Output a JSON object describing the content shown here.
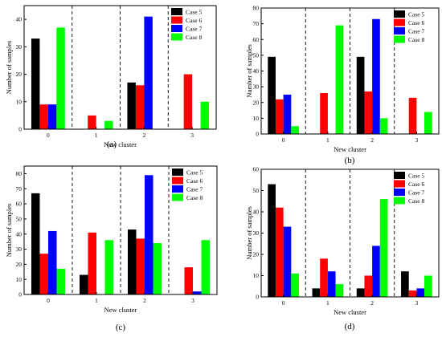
{
  "colors": {
    "case5": "#000000",
    "case6": "#ff0000",
    "case7": "#0000ff",
    "case8": "#00ff00"
  },
  "chart_data": [
    {
      "type": "bar",
      "panel_label": "(a)",
      "xlabel": "New cluster",
      "ylabel": "Number of samples",
      "categories": [
        "0",
        "1",
        "2",
        "3"
      ],
      "ylim": [
        0,
        45
      ],
      "yticks": [
        0,
        10,
        20,
        30,
        40
      ],
      "legend_position": "top-right",
      "series": [
        {
          "name": "Case 5",
          "values": [
            33,
            0,
            17,
            0
          ]
        },
        {
          "name": "Case 6",
          "values": [
            9,
            5,
            16,
            20
          ]
        },
        {
          "name": "Case 7",
          "values": [
            9,
            0,
            41,
            0
          ]
        },
        {
          "name": "Case 8",
          "values": [
            37,
            3,
            0,
            10
          ]
        }
      ]
    },
    {
      "type": "bar",
      "panel_label": "(b)",
      "xlabel": "New cluster",
      "ylabel": "Number of samples",
      "categories": [
        "0",
        "1",
        "2",
        "3"
      ],
      "ylim": [
        0,
        80
      ],
      "yticks": [
        0,
        10,
        20,
        30,
        40,
        50,
        60,
        70,
        80
      ],
      "legend_position": "top-right",
      "series": [
        {
          "name": "Case 5",
          "values": [
            49,
            0,
            49,
            0
          ]
        },
        {
          "name": "Case 6",
          "values": [
            22,
            26,
            27,
            23
          ]
        },
        {
          "name": "Case 7",
          "values": [
            25,
            0,
            73,
            0
          ]
        },
        {
          "name": "Case 8",
          "values": [
            5,
            69,
            10,
            14
          ]
        }
      ]
    },
    {
      "type": "bar",
      "panel_label": "(c)",
      "xlabel": "New cluster",
      "ylabel": "Number of samples",
      "categories": [
        "0",
        "1",
        "2",
        "3"
      ],
      "ylim": [
        0,
        85
      ],
      "yticks": [
        0,
        10,
        20,
        30,
        40,
        50,
        60,
        70,
        80
      ],
      "legend_position": "top-right",
      "series": [
        {
          "name": "Case 5",
          "values": [
            67,
            13,
            43,
            0
          ]
        },
        {
          "name": "Case 6",
          "values": [
            27,
            41,
            37,
            18
          ]
        },
        {
          "name": "Case 7",
          "values": [
            42,
            0,
            79,
            2
          ]
        },
        {
          "name": "Case 8",
          "values": [
            17,
            36,
            34,
            36
          ]
        }
      ]
    },
    {
      "type": "bar",
      "panel_label": "(d)",
      "xlabel": "New cluster",
      "ylabel": "Number of samples",
      "categories": [
        "0",
        "1",
        "2",
        "3"
      ],
      "ylim": [
        0,
        60
      ],
      "yticks": [
        0,
        10,
        20,
        30,
        40,
        50,
        60
      ],
      "legend_position": "top-right",
      "series": [
        {
          "name": "Case 5",
          "values": [
            53,
            4,
            4,
            12
          ]
        },
        {
          "name": "Case 6",
          "values": [
            42,
            18,
            10,
            3
          ]
        },
        {
          "name": "Case 7",
          "values": [
            33,
            12,
            24,
            4
          ]
        },
        {
          "name": "Case 8",
          "values": [
            11,
            6,
            46,
            10
          ]
        }
      ]
    }
  ]
}
